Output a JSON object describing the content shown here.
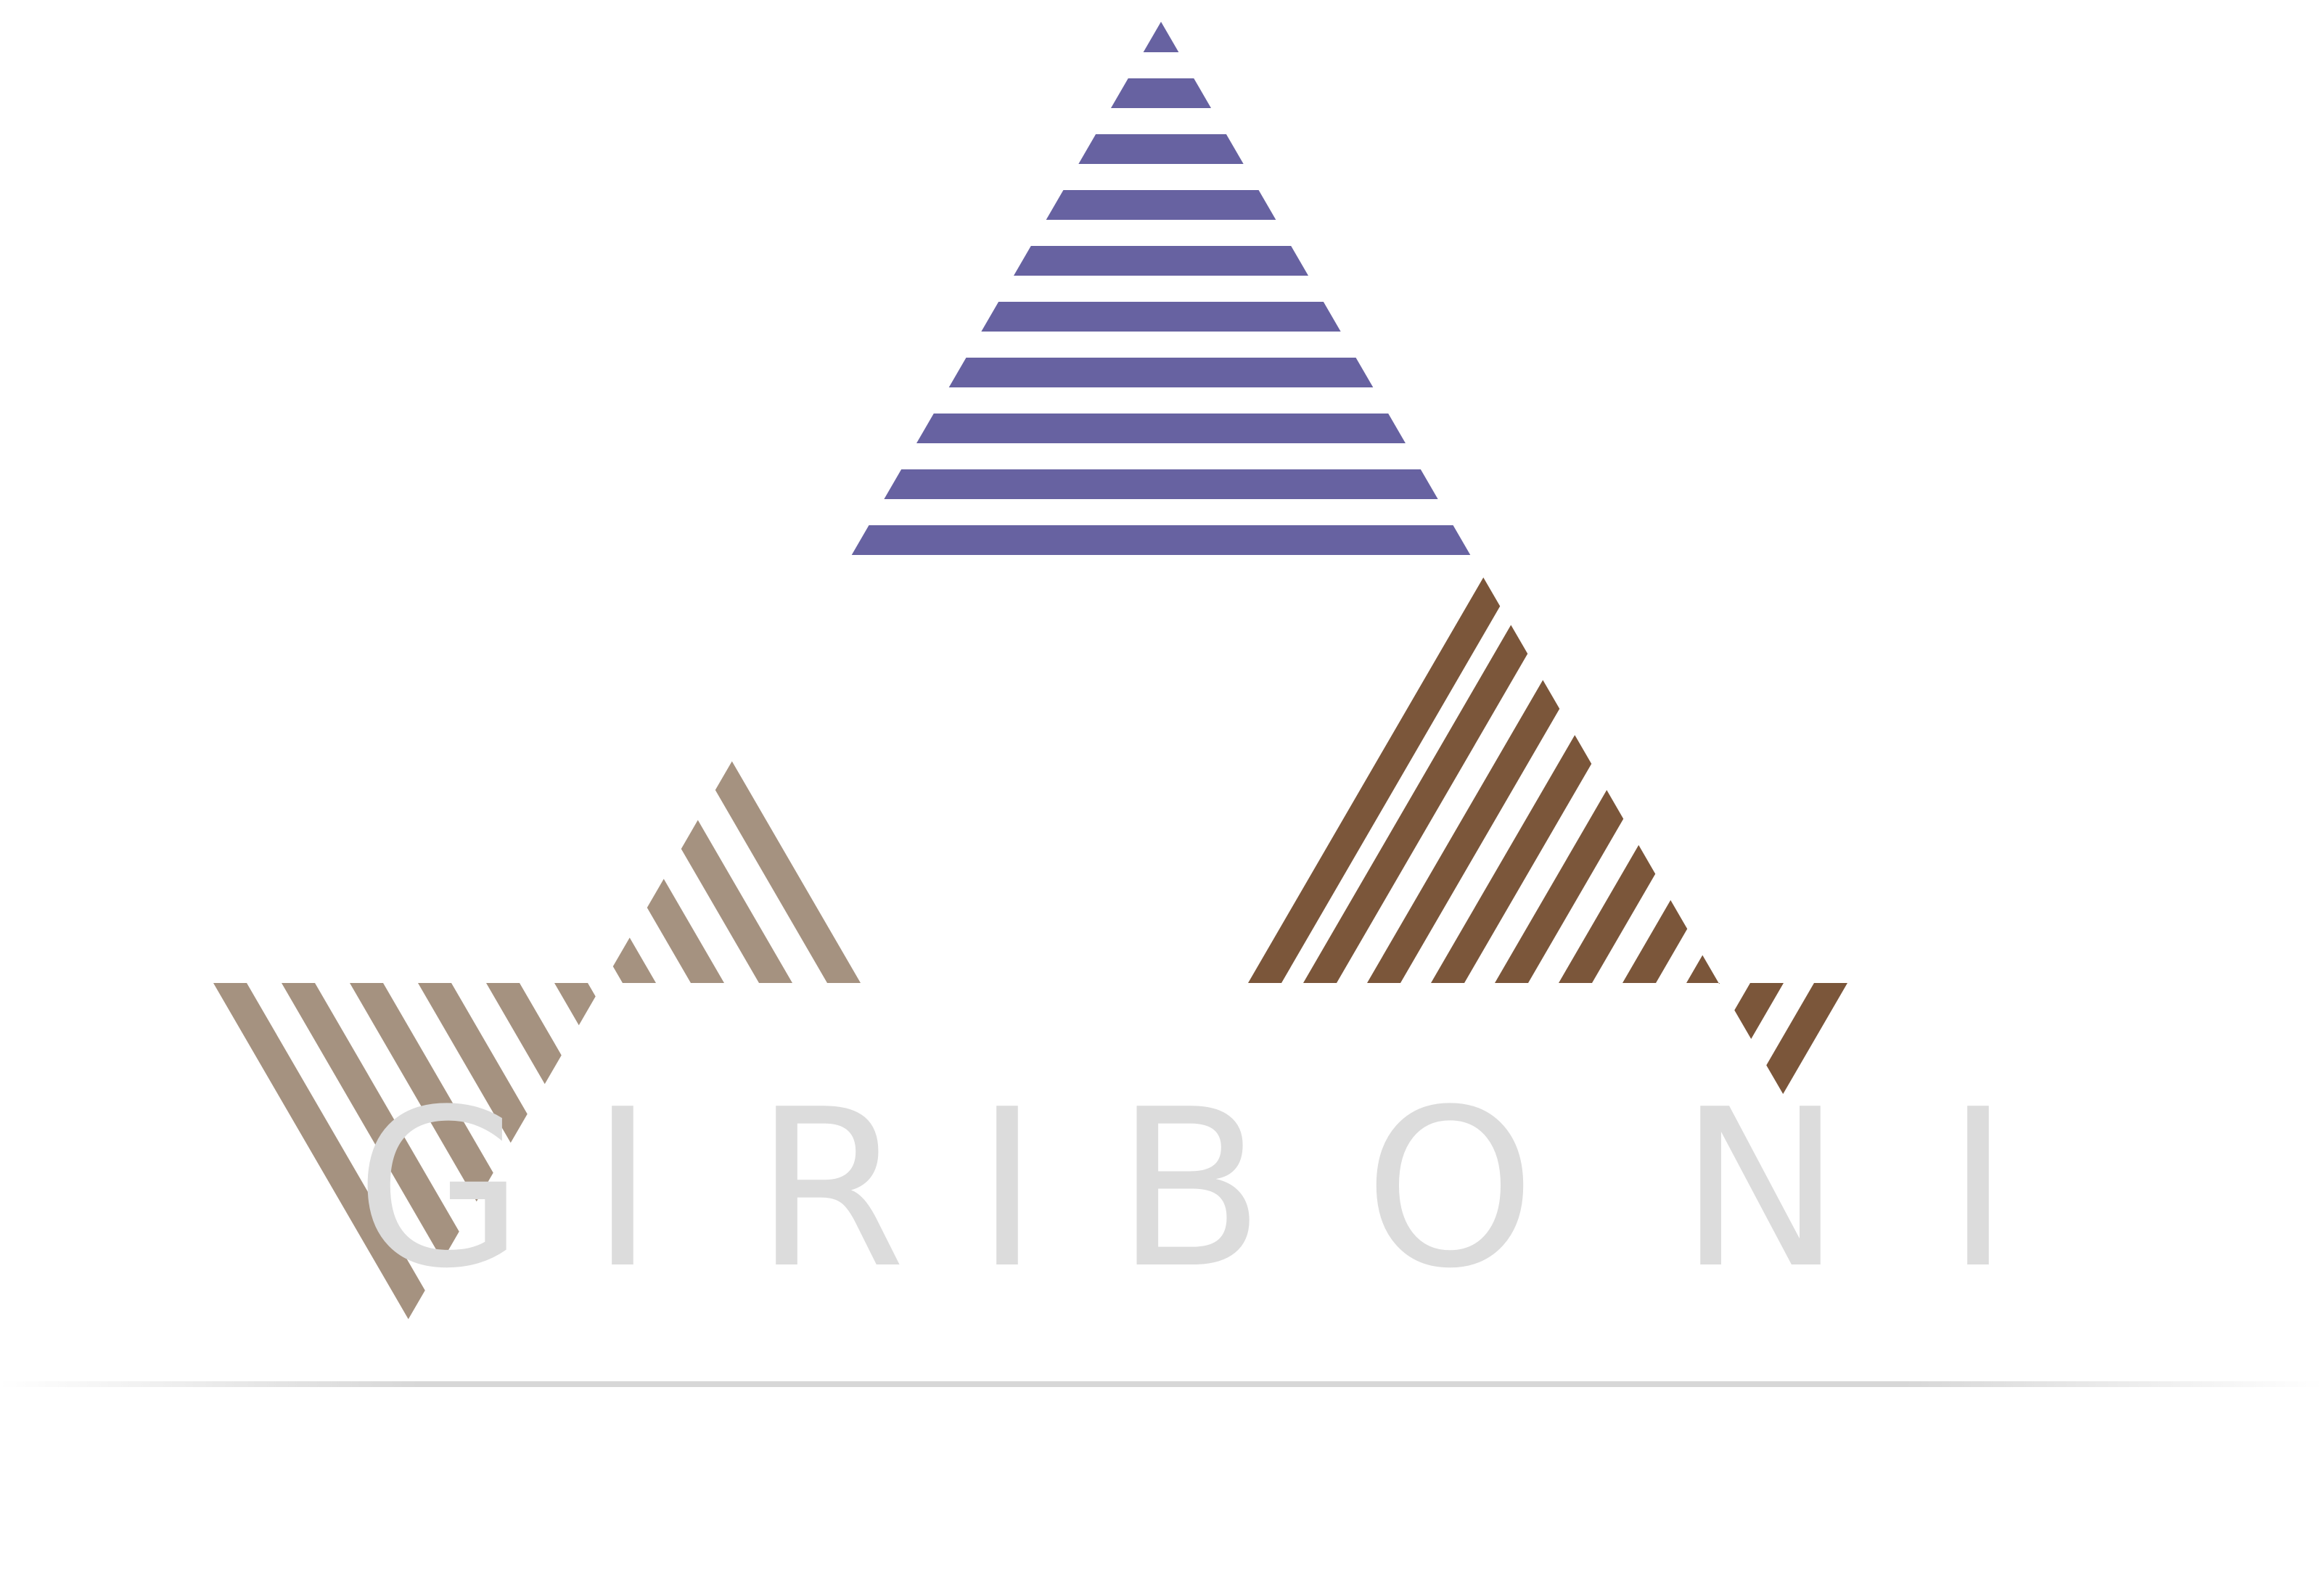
{
  "brand": {
    "name": "GIRIBONI",
    "letters": [
      "G",
      "I",
      "R",
      "I",
      "B",
      "O",
      "N",
      "I"
    ]
  },
  "colors": {
    "purple": "#6762A1",
    "tan": "#A59280",
    "brown": "#7B563A",
    "wordmark": "#DCDCDC",
    "rule": "#D7D7D7"
  },
  "icons": {
    "logo": "striped-triangle-logo-icon"
  }
}
